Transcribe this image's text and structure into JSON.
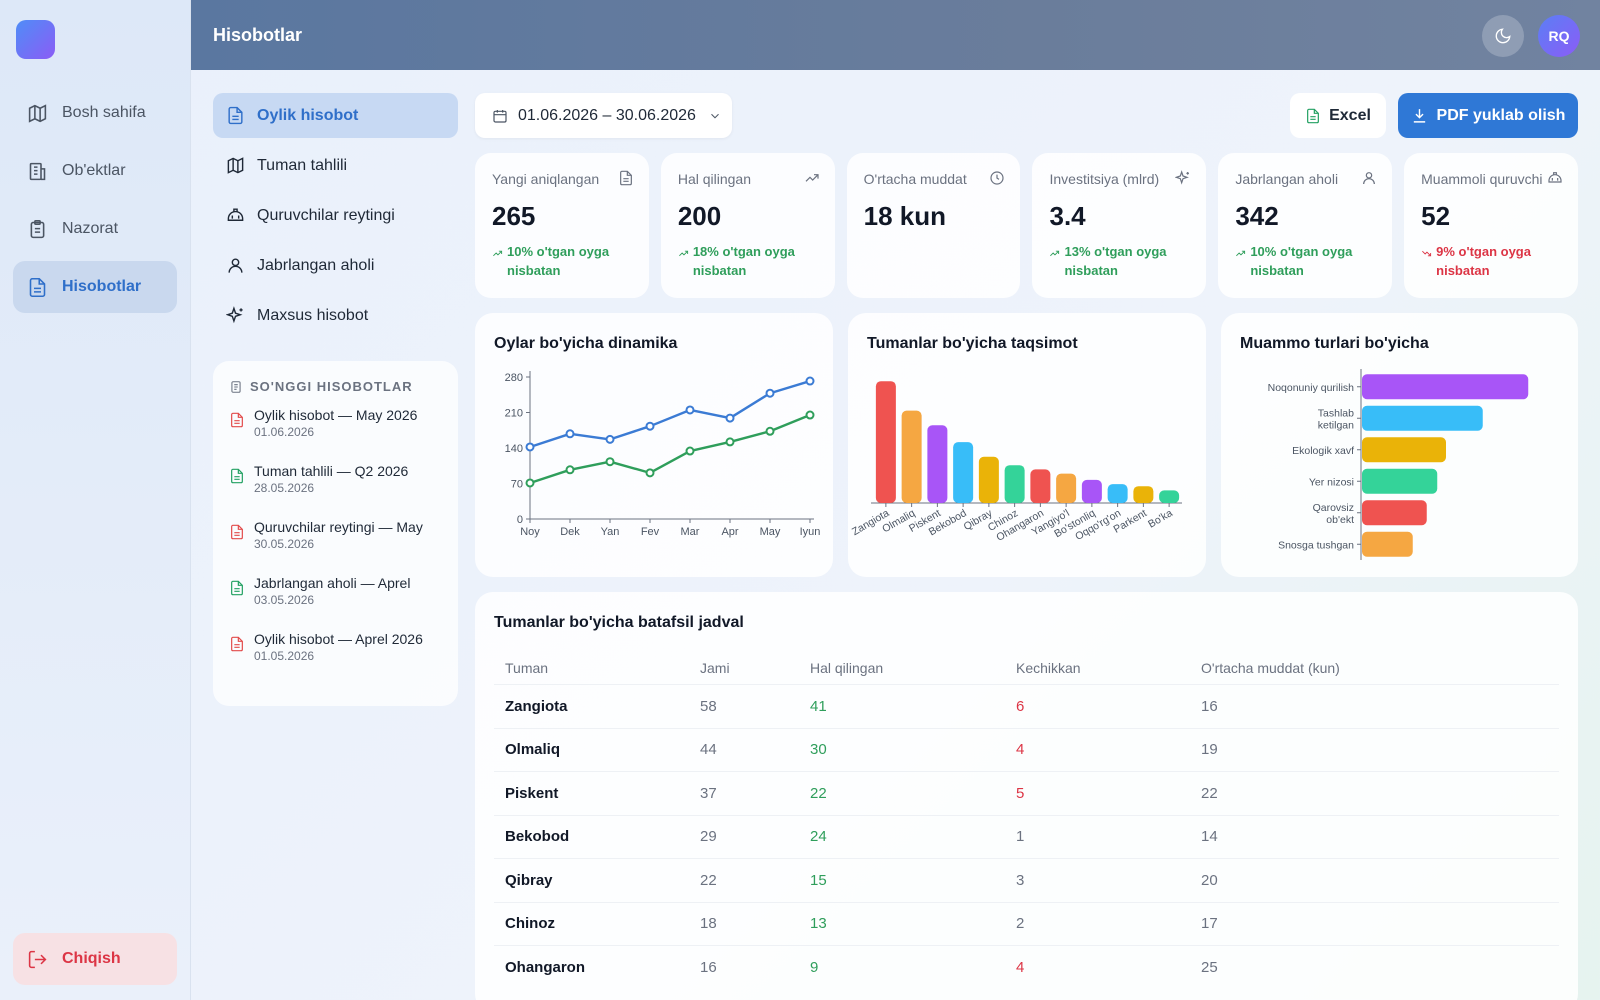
{
  "sidebar": {
    "items": [
      {
        "label": "Bosh sahifa",
        "icon": "map-icon"
      },
      {
        "label": "Ob'ektlar",
        "icon": "building-icon"
      },
      {
        "label": "Nazorat",
        "icon": "clipboard-icon"
      },
      {
        "label": "Hisobotlar",
        "icon": "file-icon",
        "active": true
      }
    ],
    "logout_label": "Chiqish"
  },
  "header": {
    "title": "Hisobotlar",
    "avatar_initials": "RQ"
  },
  "reports_menu": {
    "items": [
      {
        "label": "Oylik hisobot",
        "active": true
      },
      {
        "label": "Tuman tahlili"
      },
      {
        "label": "Quruvchilar reytingi"
      },
      {
        "label": "Jabrlangan aholi"
      },
      {
        "label": "Maxsus hisobot"
      }
    ]
  },
  "recent": {
    "title": "SO'NGGI HISOBOTLAR",
    "items": [
      {
        "name": "Oylik hisobot — May 2026",
        "date": "01.06.2026",
        "color": "#e24b4b"
      },
      {
        "name": "Tuman tahlili — Q2 2026",
        "date": "28.05.2026",
        "color": "#22a062"
      },
      {
        "name": "Quruvchilar reytingi — May",
        "date": "30.05.2026",
        "color": "#e24b4b"
      },
      {
        "name": "Jabrlangan aholi — Aprel",
        "date": "03.05.2026",
        "color": "#22a062"
      },
      {
        "name": "Oylik hisobot — Aprel 2026",
        "date": "01.05.2026",
        "color": "#e24b4b"
      }
    ]
  },
  "toolbar": {
    "date_range": "01.06.2026 – 30.06.2026",
    "excel_label": "Excel",
    "pdf_label": "PDF yuklab olish"
  },
  "stats": [
    {
      "label": "Yangi aniqlangan",
      "value": "265",
      "delta": "10% o'tgan oyga nisbatan",
      "trend": "up"
    },
    {
      "label": "Hal qilingan",
      "value": "200",
      "delta": "18% o'tgan oyga nisbatan",
      "trend": "up"
    },
    {
      "label": "O'rtacha muddat",
      "value": "18 kun",
      "delta": "",
      "trend": "none"
    },
    {
      "label": "Investitsiya (mlrd)",
      "value": "3.4",
      "delta": "13% o'tgan oyga nisbatan",
      "trend": "up"
    },
    {
      "label": "Jabrlangan aholi",
      "value": "342",
      "delta": "10% o'tgan oyga nisbatan",
      "trend": "up"
    },
    {
      "label": "Muammoli quruvchi",
      "value": "52",
      "delta": "9% o'tgan oyga nisbatan",
      "trend": "down"
    }
  ],
  "chart_data": [
    {
      "type": "line",
      "title": "Oylar bo'yicha dinamika",
      "categories": [
        "Noy",
        "Dek",
        "Yan",
        "Fev",
        "Mar",
        "Apr",
        "May",
        "Iyun"
      ],
      "ylim": [
        0,
        280
      ],
      "yticks": [
        0,
        70,
        140,
        210,
        280
      ],
      "series": [
        {
          "color": "#3b7bd4",
          "values": [
            142,
            168,
            157,
            183,
            215,
            199,
            248,
            272
          ]
        },
        {
          "color": "#2f9e5b",
          "values": [
            71,
            97,
            113,
            91,
            134,
            152,
            173,
            205
          ]
        }
      ]
    },
    {
      "type": "bar",
      "title": "Tumanlar bo'yicha taqsimot",
      "categories": [
        "Zangiota",
        "Olmaliq",
        "Piskent",
        "Bekobod",
        "Qibray",
        "Chinoz",
        "Ohangaron",
        "Yangiyo'l",
        "Bo'stonliq",
        "Oqqo'rg'on",
        "Parkent",
        "Bo'ka"
      ],
      "values": [
        58,
        44,
        37,
        29,
        22,
        18,
        16,
        14,
        11,
        9,
        8,
        6
      ],
      "colors": [
        "#ef5350",
        "#f5a742",
        "#a855f7",
        "#38bdf8",
        "#eab308",
        "#34d399",
        "#ef5350",
        "#f5a742",
        "#a855f7",
        "#38bdf8",
        "#eab308",
        "#34d399"
      ],
      "ylim": [
        0,
        60
      ]
    },
    {
      "type": "bar",
      "orientation": "horizontal",
      "title": "Muammo turlari bo'yicha",
      "categories": [
        "Noqonuniy qurilish",
        "Tashlab ketilgan",
        "Ekologik xavf",
        "Yer nizosi",
        "Qarovsiz ob'ekt",
        "Snosga tushgan"
      ],
      "values": [
        95,
        69,
        48,
        43,
        37,
        29
      ],
      "colors": [
        "#a855f7",
        "#38bdf8",
        "#eab308",
        "#34d399",
        "#ef5350",
        "#f5a742"
      ],
      "xlim": [
        0,
        100
      ]
    }
  ],
  "table": {
    "title": "Tumanlar bo'yicha batafsil jadval",
    "columns": [
      "Tuman",
      "Jami",
      "Hal qilingan",
      "Kechikkan",
      "O'rtacha muddat (kun)"
    ],
    "rows": [
      [
        "Zangiota",
        "58",
        "41",
        "6",
        "16"
      ],
      [
        "Olmaliq",
        "44",
        "30",
        "4",
        "19"
      ],
      [
        "Piskent",
        "37",
        "22",
        "5",
        "22"
      ],
      [
        "Bekobod",
        "29",
        "24",
        "1",
        "14"
      ],
      [
        "Qibray",
        "22",
        "15",
        "3",
        "20"
      ],
      [
        "Chinoz",
        "18",
        "13",
        "2",
        "17"
      ],
      [
        "Ohangaron",
        "16",
        "9",
        "4",
        "25"
      ]
    ]
  }
}
